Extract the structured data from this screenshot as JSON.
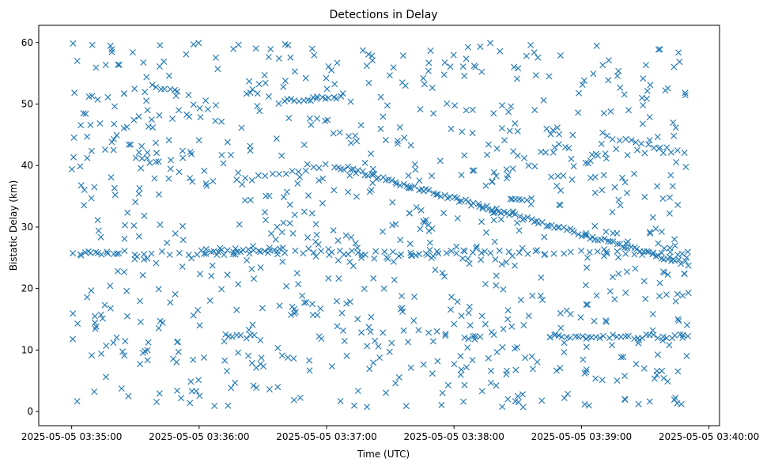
{
  "chart_data": {
    "type": "scatter",
    "title": "Detections in Delay",
    "xlabel": "Time (UTC)",
    "ylabel": "Bistatic Delay (km)",
    "x_tick_labels": [
      "2025-05-05 03:35:00",
      "2025-05-05 03:36:00",
      "2025-05-05 03:37:00",
      "2025-05-05 03:38:00",
      "2025-05-05 03:39:00",
      "2025-05-05 03:40:00"
    ],
    "x_ticks_seconds": [
      0,
      60,
      120,
      180,
      240,
      300
    ],
    "x_range_seconds": [
      -15.5,
      305
    ],
    "y_ticks": [
      0,
      10,
      20,
      30,
      40,
      50,
      60
    ],
    "ylim": [
      -2.3,
      62.8
    ],
    "grid": false,
    "legend": "none",
    "marker": "x",
    "color": "#1f77b4",
    "tracks": [
      {
        "t0": 124,
        "t1": 290,
        "y0": 40.0,
        "y1": 24.0,
        "n": 120
      },
      {
        "t0": 78,
        "t1": 120,
        "y0": 37.5,
        "y1": 40.0,
        "n": 14
      },
      {
        "t0": 0,
        "t1": 290,
        "y0": 25.8,
        "y1": 25.8,
        "n": 70
      },
      {
        "t0": 4,
        "t1": 22,
        "y0": 25.5,
        "y1": 25.8,
        "n": 8
      },
      {
        "t0": 98,
        "t1": 125,
        "y0": 50.4,
        "y1": 51.2,
        "n": 16
      },
      {
        "t0": 252,
        "t1": 288,
        "y0": 44.8,
        "y1": 42.0,
        "n": 14
      },
      {
        "t0": 225,
        "t1": 290,
        "y0": 12.2,
        "y1": 12.2,
        "n": 34
      },
      {
        "t0": 72,
        "t1": 86,
        "y0": 12.2,
        "y1": 12.2,
        "n": 8
      },
      {
        "t0": 185,
        "t1": 192,
        "y0": 12.0,
        "y1": 12.0,
        "n": 5
      },
      {
        "t0": 61,
        "t1": 98,
        "y0": 26.2,
        "y1": 26.2,
        "n": 16
      },
      {
        "t0": 125,
        "t1": 190,
        "y0": 24.5,
        "y1": 26.4,
        "n": 12
      },
      {
        "t0": 206,
        "t1": 214,
        "y0": 34.5,
        "y1": 34.5,
        "n": 6
      },
      {
        "t0": 38,
        "t1": 50,
        "y0": 52.8,
        "y1": 52.0,
        "n": 7
      },
      {
        "t0": 288,
        "t1": 290,
        "y0": 19.0,
        "y1": 19.0,
        "n": 2
      }
    ],
    "noise": {
      "count": 880,
      "t_range": [
        0,
        290
      ],
      "y_range": [
        0.5,
        60
      ],
      "seed": 42
    }
  }
}
